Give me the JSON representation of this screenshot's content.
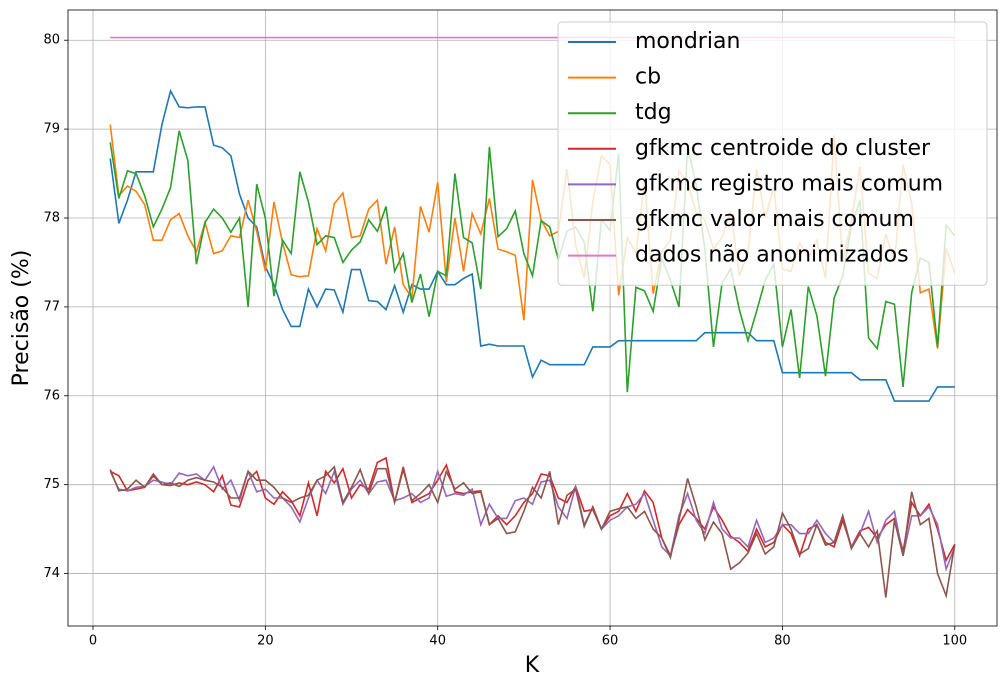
{
  "chart_data": {
    "type": "line",
    "xlabel": "K",
    "ylabel": "Precisão (%)",
    "xlim": [
      -2.9,
      104.9
    ],
    "ylim": [
      73.41,
      80.34
    ],
    "xticks": [
      0,
      20,
      40,
      60,
      80,
      100
    ],
    "yticks": [
      74,
      75,
      76,
      77,
      78,
      79,
      80
    ],
    "grid": true,
    "legend": "upper right",
    "x": [
      2,
      3,
      4,
      5,
      6,
      7,
      8,
      9,
      10,
      11,
      12,
      13,
      14,
      15,
      16,
      17,
      18,
      19,
      20,
      21,
      22,
      23,
      24,
      25,
      26,
      27,
      28,
      29,
      30,
      31,
      32,
      33,
      34,
      35,
      36,
      37,
      38,
      39,
      40,
      41,
      42,
      43,
      44,
      45,
      46,
      47,
      48,
      49,
      50,
      51,
      52,
      53,
      54,
      55,
      56,
      57,
      58,
      59,
      60,
      61,
      62,
      63,
      64,
      65,
      66,
      67,
      68,
      69,
      70,
      71,
      72,
      73,
      74,
      75,
      76,
      77,
      78,
      79,
      80,
      81,
      82,
      83,
      84,
      85,
      86,
      87,
      88,
      89,
      90,
      91,
      92,
      93,
      94,
      95,
      96,
      97,
      98,
      99,
      100
    ],
    "series": [
      {
        "name": "mondrian",
        "color": "#1f77b4",
        "values": [
          78.67,
          77.94,
          78.2,
          78.52,
          78.52,
          78.52,
          79.05,
          79.43,
          79.25,
          79.24,
          79.25,
          79.25,
          78.82,
          78.79,
          78.7,
          78.27,
          78.0,
          77.9,
          77.45,
          77.25,
          76.97,
          76.78,
          76.78,
          77.2,
          77.0,
          77.2,
          77.19,
          76.94,
          77.42,
          77.42,
          77.07,
          77.06,
          76.97,
          77.24,
          76.94,
          77.25,
          77.2,
          77.2,
          77.4,
          77.25,
          77.25,
          77.32,
          77.37,
          76.56,
          76.58,
          76.56,
          76.56,
          76.56,
          76.56,
          76.21,
          76.4,
          76.35,
          76.35,
          76.35,
          76.35,
          76.35,
          76.55,
          76.55,
          76.55,
          76.62,
          76.62,
          76.62,
          76.62,
          76.62,
          76.62,
          76.62,
          76.62,
          76.62,
          76.62,
          76.71,
          76.71,
          76.71,
          76.71,
          76.71,
          76.71,
          76.62,
          76.62,
          76.62,
          76.26,
          76.26,
          76.26,
          76.26,
          76.26,
          76.26,
          76.26,
          76.26,
          76.26,
          76.18,
          76.18,
          76.18,
          76.18,
          75.94,
          75.94,
          75.94,
          75.94,
          75.94,
          76.1,
          76.1,
          76.1
        ]
      },
      {
        "name": "cb",
        "color": "#ff7f0e",
        "values": [
          79.05,
          78.25,
          78.36,
          78.3,
          78.15,
          77.75,
          77.75,
          77.98,
          78.05,
          77.8,
          77.62,
          77.95,
          77.6,
          77.63,
          77.8,
          77.78,
          78.2,
          77.85,
          77.4,
          78.18,
          77.72,
          77.36,
          77.34,
          77.35,
          77.88,
          77.63,
          78.16,
          78.28,
          77.78,
          77.8,
          78.1,
          78.2,
          77.48,
          77.9,
          77.25,
          77.1,
          78.13,
          77.84,
          78.4,
          77.28,
          78.0,
          77.4,
          78.05,
          77.82,
          78.22,
          77.65,
          77.62,
          77.58,
          76.85,
          78.43,
          77.98,
          77.8,
          77.85,
          78.55,
          77.7,
          77.33,
          78.18,
          78.7,
          78.6,
          77.13,
          77.78,
          77.6,
          78.42,
          77.15,
          77.62,
          77.75,
          78.53,
          78.4,
          78.06,
          77.98,
          77.65,
          77.78,
          78.08,
          77.35,
          77.6,
          78.55,
          78.0,
          78.35,
          77.43,
          77.4,
          77.72,
          77.55,
          77.75,
          77.32,
          78.93,
          77.5,
          77.97,
          78.58,
          77.38,
          77.32,
          77.82,
          77.5,
          78.6,
          78.16,
          77.16,
          77.2,
          76.53,
          77.66,
          77.38
        ]
      },
      {
        "name": "tdg",
        "color": "#2ca02c",
        "values": [
          78.85,
          78.22,
          78.53,
          78.5,
          78.25,
          77.9,
          78.1,
          78.34,
          78.98,
          78.65,
          77.48,
          77.95,
          78.1,
          78.0,
          77.84,
          78.0,
          77.0,
          78.38,
          78.0,
          77.12,
          77.75,
          77.6,
          78.52,
          78.18,
          77.7,
          77.8,
          77.78,
          77.5,
          77.64,
          77.73,
          77.98,
          77.85,
          78.13,
          77.4,
          77.6,
          77.05,
          77.37,
          76.89,
          77.4,
          77.35,
          78.5,
          77.78,
          77.72,
          77.2,
          78.8,
          77.79,
          77.88,
          78.08,
          77.6,
          77.35,
          77.97,
          77.9,
          77.53,
          77.85,
          77.9,
          77.73,
          76.95,
          77.98,
          77.86,
          78.73,
          76.04,
          77.22,
          77.18,
          76.95,
          77.55,
          77.3,
          77.0,
          78.8,
          78.37,
          77.65,
          76.55,
          77.27,
          77.43,
          76.97,
          76.62,
          76.95,
          77.3,
          77.48,
          76.55,
          76.97,
          76.2,
          77.23,
          76.9,
          76.22,
          77.1,
          77.35,
          77.9,
          78.2,
          76.65,
          76.53,
          77.06,
          77.03,
          76.1,
          77.16,
          77.55,
          77.5,
          76.55,
          77.92,
          77.8
        ]
      },
      {
        "name": "gfkmc centroide do cluster",
        "color": "#d62728",
        "values": [
          75.15,
          75.1,
          74.93,
          74.95,
          74.97,
          75.1,
          75.0,
          74.99,
          75.02,
          75.0,
          75.03,
          75.0,
          74.92,
          75.1,
          74.77,
          74.75,
          75.05,
          75.15,
          74.85,
          74.78,
          74.92,
          74.82,
          74.65,
          75.02,
          74.65,
          75.15,
          75.02,
          75.18,
          74.85,
          75.0,
          74.95,
          75.25,
          75.3,
          74.8,
          75.2,
          74.8,
          74.85,
          74.9,
          75.05,
          75.22,
          74.92,
          74.9,
          74.92,
          74.93,
          74.55,
          74.65,
          74.55,
          74.65,
          74.8,
          74.9,
          75.12,
          75.1,
          74.85,
          74.8,
          74.98,
          74.7,
          74.72,
          74.5,
          74.65,
          74.7,
          74.9,
          74.7,
          74.93,
          74.8,
          74.4,
          74.2,
          74.55,
          74.72,
          74.62,
          74.5,
          74.75,
          74.6,
          74.42,
          74.35,
          74.25,
          74.5,
          74.3,
          74.35,
          74.55,
          74.45,
          74.2,
          74.5,
          74.55,
          74.35,
          74.3,
          74.6,
          74.3,
          74.48,
          74.52,
          74.4,
          74.55,
          74.62,
          74.25,
          74.8,
          74.65,
          74.78,
          74.5,
          74.15,
          74.33
        ]
      },
      {
        "name": "gfkmc registro mais comum",
        "color": "#9467bd",
        "values": [
          75.15,
          74.95,
          74.93,
          74.97,
          74.98,
          75.05,
          75.03,
          75.0,
          75.13,
          75.1,
          75.12,
          75.05,
          75.2,
          74.95,
          75.05,
          74.82,
          75.15,
          74.92,
          74.95,
          74.85,
          74.85,
          74.75,
          74.58,
          74.85,
          75.05,
          74.9,
          75.15,
          74.78,
          74.95,
          75.05,
          74.9,
          75.03,
          75.05,
          74.82,
          74.85,
          74.9,
          74.8,
          74.85,
          75.15,
          74.87,
          74.9,
          74.88,
          74.95,
          74.55,
          74.78,
          74.62,
          74.62,
          74.82,
          74.85,
          74.78,
          75.03,
          75.05,
          74.75,
          74.62,
          74.98,
          74.55,
          74.75,
          74.5,
          74.6,
          74.65,
          74.75,
          74.78,
          74.9,
          74.6,
          74.3,
          74.2,
          74.65,
          74.9,
          74.6,
          74.45,
          74.8,
          74.5,
          74.4,
          74.4,
          74.3,
          74.6,
          74.35,
          74.4,
          74.55,
          74.55,
          74.45,
          74.45,
          74.6,
          74.45,
          74.35,
          74.65,
          74.3,
          74.45,
          74.7,
          74.35,
          74.6,
          74.7,
          74.2,
          74.65,
          74.65,
          74.75,
          74.55,
          74.05,
          74.3
        ]
      },
      {
        "name": "gfkmc valor mais comum",
        "color": "#8c564b",
        "values": [
          75.17,
          74.93,
          74.95,
          75.05,
          74.97,
          75.12,
          75.0,
          75.02,
          74.98,
          75.05,
          75.08,
          75.05,
          75.03,
          74.97,
          74.85,
          74.85,
          75.15,
          75.05,
          75.05,
          74.97,
          74.85,
          74.8,
          74.85,
          74.88,
          75.05,
          75.1,
          75.2,
          74.8,
          74.97,
          75.17,
          74.9,
          75.18,
          75.18,
          74.8,
          75.17,
          74.82,
          74.9,
          75.0,
          74.8,
          75.15,
          74.95,
          75.02,
          74.9,
          74.92,
          74.55,
          74.62,
          74.45,
          74.47,
          74.7,
          74.97,
          74.85,
          75.15,
          74.55,
          74.88,
          74.95,
          74.53,
          74.75,
          74.5,
          74.7,
          74.73,
          74.75,
          74.62,
          74.7,
          74.5,
          74.4,
          74.18,
          74.6,
          75.07,
          74.75,
          74.38,
          74.58,
          74.45,
          74.05,
          74.12,
          74.23,
          74.45,
          74.22,
          74.3,
          74.68,
          74.5,
          74.22,
          74.28,
          74.55,
          74.32,
          74.35,
          74.65,
          74.28,
          74.45,
          74.3,
          74.48,
          73.73,
          74.6,
          74.2,
          74.92,
          74.55,
          74.62,
          74.0,
          73.75,
          74.33
        ]
      },
      {
        "name": "dados não anonimizados",
        "color": "#e377c2",
        "values": [
          80.03,
          80.03,
          80.03,
          80.03,
          80.03,
          80.03,
          80.03,
          80.03,
          80.03,
          80.03,
          80.03,
          80.03,
          80.03,
          80.03,
          80.03,
          80.03,
          80.03,
          80.03,
          80.03,
          80.03,
          80.03,
          80.03,
          80.03,
          80.03,
          80.03,
          80.03,
          80.03,
          80.03,
          80.03,
          80.03,
          80.03,
          80.03,
          80.03,
          80.03,
          80.03,
          80.03,
          80.03,
          80.03,
          80.03,
          80.03,
          80.03,
          80.03,
          80.03,
          80.03,
          80.03,
          80.03,
          80.03,
          80.03,
          80.03,
          80.03,
          80.03,
          80.03,
          80.03,
          80.03,
          80.03,
          80.03,
          80.03,
          80.03,
          80.03,
          80.03,
          80.03,
          80.03,
          80.03,
          80.03,
          80.03,
          80.03,
          80.03,
          80.03,
          80.03,
          80.03,
          80.03,
          80.03,
          80.03,
          80.03,
          80.03,
          80.03,
          80.03,
          80.03,
          80.03,
          80.03,
          80.03,
          80.03,
          80.03,
          80.03,
          80.03,
          80.03,
          80.03,
          80.03,
          80.03,
          80.03,
          80.03,
          80.03,
          80.03,
          80.03,
          80.03,
          80.03,
          80.03,
          80.03,
          80.03
        ]
      }
    ]
  }
}
